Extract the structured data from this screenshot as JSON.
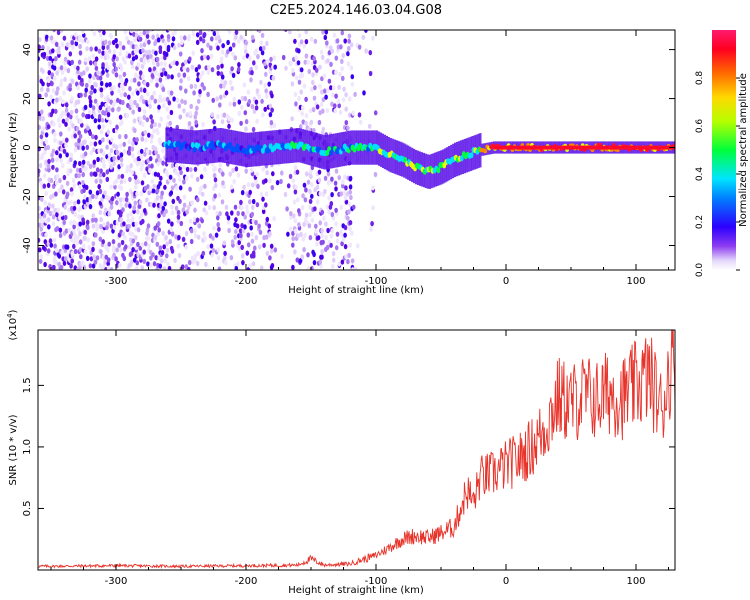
{
  "title": "C2E5.2024.146.03.04.G08",
  "colors": {
    "snr_line": "#e8332a",
    "axis": "#000000",
    "spectrogram_low": "#c9b3f5",
    "spectrogram_mid": "#5a00e0"
  },
  "chart_data": [
    {
      "type": "heatmap",
      "name": "spectrogram",
      "xlabel": "Height of straight line (km)",
      "ylabel": "Frequency (Hz)",
      "xlim": [
        -360,
        130
      ],
      "ylim": [
        -50,
        48
      ],
      "x_ticks": [
        -300,
        -200,
        -100,
        0,
        100
      ],
      "y_ticks": [
        -40,
        -20,
        0,
        20,
        40
      ],
      "ridge": {
        "x": [
          -260,
          -240,
          -220,
          -200,
          -180,
          -160,
          -140,
          -120,
          -100,
          -90,
          -80,
          -70,
          -60,
          -50,
          -40,
          -30,
          -20,
          -10,
          0,
          50,
          130
        ],
        "freq": [
          1,
          0,
          1,
          -1,
          0,
          1,
          -2,
          0,
          0,
          -3,
          -5,
          -8,
          -10,
          -8,
          -5,
          -3,
          -1,
          0,
          0,
          0,
          0
        ]
      },
      "colorbar": {
        "label": "Normalized spectral amplitude",
        "range": [
          0,
          1
        ],
        "ticks": [
          "0.0",
          "0.2",
          "0.4",
          "0.6",
          "0.8"
        ]
      }
    },
    {
      "type": "line",
      "name": "snr",
      "xlabel": "Height of straight line (km)",
      "ylabel": "SNR (10 * v/v)",
      "scale_note": "(x10",
      "scale_exp": "4",
      "scale_close": ")",
      "xlim": [
        -360,
        130
      ],
      "ylim": [
        0,
        19500
      ],
      "x_ticks": [
        -300,
        -200,
        -100,
        0,
        100
      ],
      "y_ticks": [
        5000,
        10000,
        15000
      ],
      "y_tick_labels": [
        "0.5",
        "1.0",
        "1.5"
      ],
      "series": [
        {
          "name": "SNR",
          "x": [
            -360,
            -300,
            -250,
            -200,
            -160,
            -150,
            -140,
            -120,
            -100,
            -90,
            -80,
            -70,
            -60,
            -50,
            -40,
            -30,
            -25,
            -20,
            -10,
            0,
            10,
            20,
            30,
            40,
            50,
            60,
            70,
            80,
            90,
            100,
            110,
            120,
            125,
            130
          ],
          "y": [
            300,
            350,
            300,
            350,
            400,
            900,
            400,
            500,
            1200,
            1800,
            2500,
            2800,
            2600,
            3000,
            3500,
            6500,
            5500,
            7500,
            7800,
            8500,
            9000,
            10000,
            11500,
            14000,
            13500,
            14200,
            13800,
            14500,
            14000,
            15000,
            15800,
            13000,
            16000,
            17500
          ]
        }
      ]
    }
  ]
}
